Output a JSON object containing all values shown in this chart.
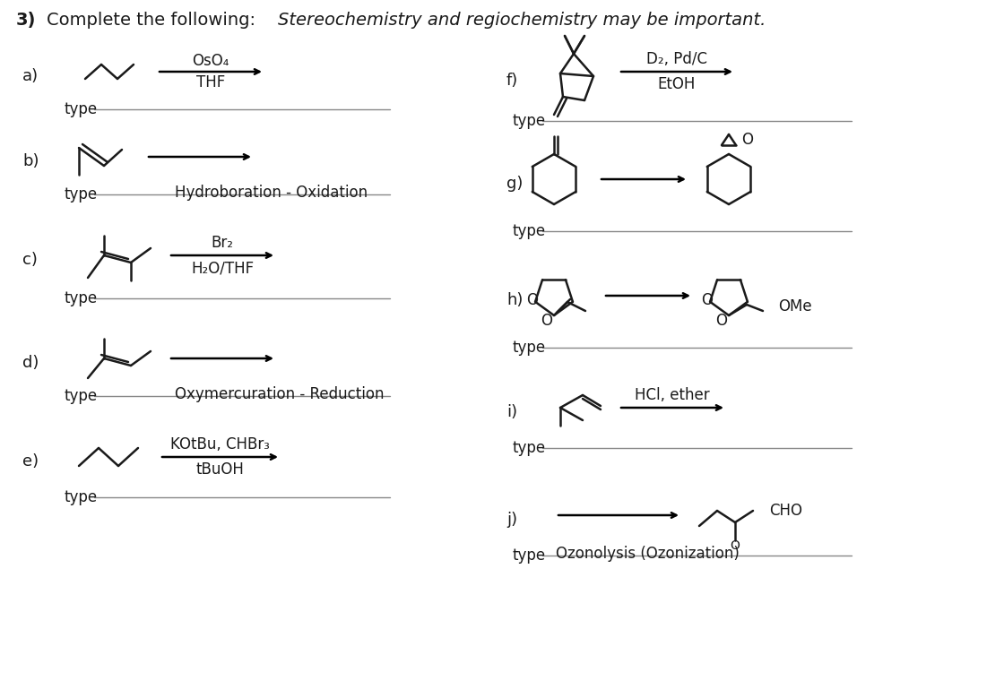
{
  "title_bold": "3)",
  "title_text": " Complete the following: ",
  "title_italic": "Stereochemistry and regiochemistry may be important.",
  "background": "#ffffff",
  "text_color": "#1a1a1a",
  "line_color": "#1a1a1a",
  "reactions": [
    {
      "label": "a)",
      "reagent1": "OsO₄",
      "reagent2": "THF",
      "type_label": "type"
    },
    {
      "label": "b)",
      "reagent1": "",
      "reagent2": "",
      "type_label": "type",
      "above_line": "Hydroboration - Oxidation"
    },
    {
      "label": "c)",
      "reagent1": "Br₂",
      "reagent2": "H₂O/THF",
      "type_label": "type"
    },
    {
      "label": "d)",
      "reagent1": "",
      "reagent2": "",
      "type_label": "type",
      "above_line": "Oxymercuration - Reduction"
    },
    {
      "label": "e)",
      "reagent1": "KOtBu, CHBr₃",
      "reagent2": "tBuOH",
      "type_label": "type"
    },
    {
      "label": "f)",
      "reagent1": "D₂, Pd/C",
      "reagent2": "EtOH",
      "type_label": "type"
    },
    {
      "label": "g)",
      "reagent1": "",
      "reagent2": "",
      "type_label": "type"
    },
    {
      "label": "h)",
      "reagent1": "",
      "reagent2": "",
      "type_label": "type"
    },
    {
      "label": "i)",
      "reagent1": "HCl, ether",
      "reagent2": "",
      "type_label": "type"
    },
    {
      "label": "j)",
      "reagent1": "",
      "reagent2": "",
      "type_label": "type",
      "above_line": "Ozonolysis (Ozonization)"
    }
  ]
}
